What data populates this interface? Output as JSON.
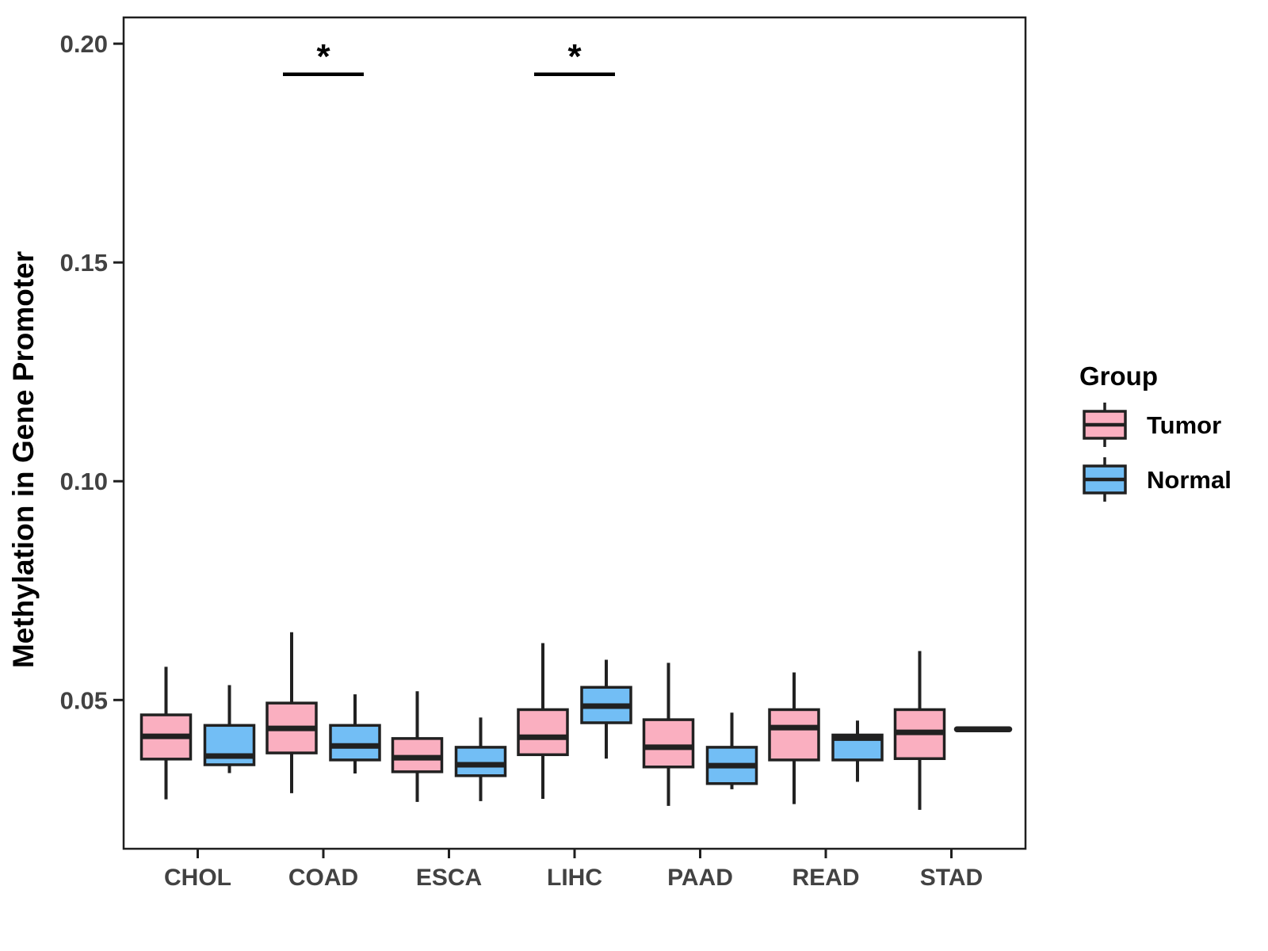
{
  "chart_data": {
    "type": "grouped_boxplot",
    "title": "",
    "xlabel": "",
    "ylabel": "Methylation in Gene Promoter",
    "categories": [
      "CHOL",
      "COAD",
      "ESCA",
      "LIHC",
      "PAAD",
      "READ",
      "STAD"
    ],
    "y_ticks": [
      0.05,
      0.1,
      0.15,
      0.2
    ],
    "y_tick_labels": [
      "0.05",
      "0.10",
      "0.15",
      "0.20"
    ],
    "ylim": [
      0.016,
      0.206
    ],
    "grid": "off",
    "panel_border": "on",
    "colors": {
      "tumor_fill": "#FAAFC0",
      "normal_fill": "#72BEF5",
      "box_stroke": "#212121",
      "axis_text": "#424242",
      "axis_title": "#000000",
      "annotation": "#000000"
    },
    "legend": {
      "title": "Group",
      "position": "right",
      "entries": [
        {
          "label": "Tumor",
          "color": "#FAAFC0"
        },
        {
          "label": "Normal",
          "color": "#72BEF5"
        }
      ]
    },
    "series": [
      {
        "name": "Tumor",
        "color": "#FAAFC0",
        "boxes": [
          {
            "category": "CHOL",
            "min": 0.0273,
            "q1": 0.0365,
            "median": 0.0417,
            "q3": 0.0466,
            "max": 0.0576
          },
          {
            "category": "COAD",
            "min": 0.0287,
            "q1": 0.0379,
            "median": 0.0435,
            "q3": 0.0493,
            "max": 0.0655
          },
          {
            "category": "ESCA",
            "min": 0.0267,
            "q1": 0.0336,
            "median": 0.0368,
            "q3": 0.0412,
            "max": 0.052
          },
          {
            "category": "LIHC",
            "min": 0.0274,
            "q1": 0.0375,
            "median": 0.0415,
            "q3": 0.0478,
            "max": 0.063
          },
          {
            "category": "PAAD",
            "min": 0.0258,
            "q1": 0.0347,
            "median": 0.0392,
            "q3": 0.0455,
            "max": 0.0585
          },
          {
            "category": "READ",
            "min": 0.0262,
            "q1": 0.0363,
            "median": 0.0437,
            "q3": 0.0478,
            "max": 0.0563
          },
          {
            "category": "STAD",
            "min": 0.0249,
            "q1": 0.0366,
            "median": 0.0426,
            "q3": 0.0478,
            "max": 0.0612
          }
        ]
      },
      {
        "name": "Normal",
        "color": "#72BEF5",
        "boxes": [
          {
            "category": "CHOL",
            "min": 0.0333,
            "q1": 0.0352,
            "median": 0.0372,
            "q3": 0.0442,
            "max": 0.0534
          },
          {
            "category": "COAD",
            "min": 0.0332,
            "q1": 0.0363,
            "median": 0.0395,
            "q3": 0.0442,
            "max": 0.0513
          },
          {
            "category": "ESCA",
            "min": 0.0269,
            "q1": 0.0327,
            "median": 0.0352,
            "q3": 0.0392,
            "max": 0.046
          },
          {
            "category": "LIHC",
            "min": 0.0366,
            "q1": 0.0448,
            "median": 0.0486,
            "q3": 0.0529,
            "max": 0.0592
          },
          {
            "category": "PAAD",
            "min": 0.0296,
            "q1": 0.0309,
            "median": 0.035,
            "q3": 0.0392,
            "max": 0.0471
          },
          {
            "category": "READ",
            "min": 0.0313,
            "q1": 0.0363,
            "median": 0.0413,
            "q3": 0.042,
            "max": 0.0453
          },
          {
            "category": "STAD",
            "min": 0.0433,
            "q1": 0.0433,
            "median": 0.0433,
            "q3": 0.0433,
            "max": 0.0433
          }
        ]
      }
    ],
    "annotations": [
      {
        "category": "COAD",
        "label": "*",
        "bar_y": 0.193
      },
      {
        "category": "LIHC",
        "label": "*",
        "bar_y": 0.193
      }
    ]
  }
}
